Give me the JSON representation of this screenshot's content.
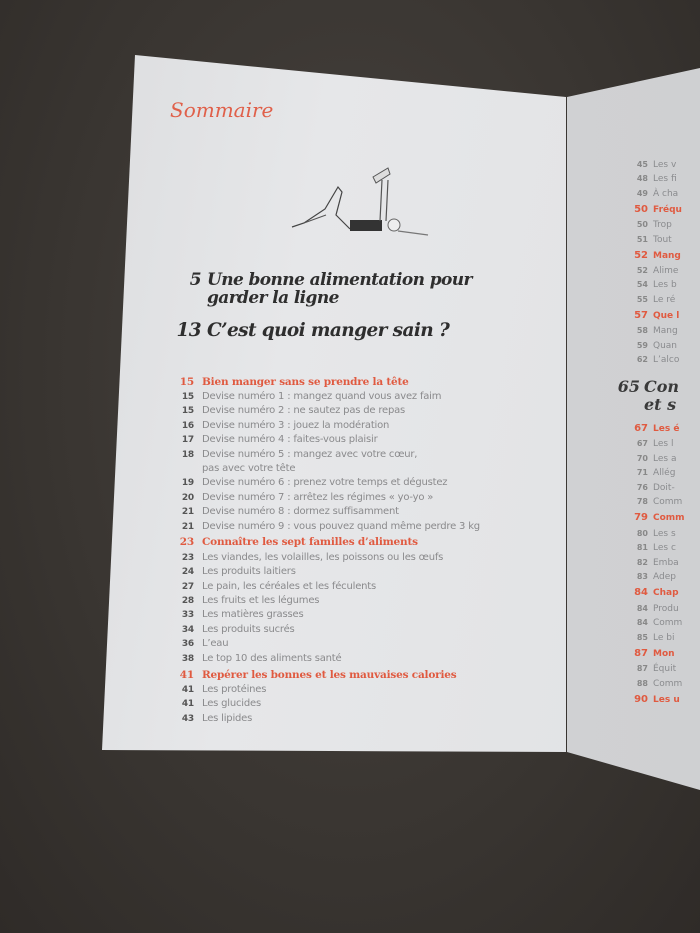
{
  "left_page": {
    "heading": "Sommaire",
    "chapters": [
      {
        "page": "5",
        "line1": "Une bonne alimentation pour",
        "line2": "garder la ligne"
      },
      {
        "page": "13",
        "line1": "C’est quoi manger sain ?"
      }
    ],
    "entries": [
      {
        "page": "15",
        "text": "Bien manger sans se prendre la tête",
        "section": true
      },
      {
        "page": "15",
        "text": "Devise numéro 1 : mangez quand vous avez faim"
      },
      {
        "page": "15",
        "text": "Devise numéro 2 : ne sautez pas de repas"
      },
      {
        "page": "16",
        "text": "Devise numéro 3 : jouez la modération"
      },
      {
        "page": "17",
        "text": "Devise numéro 4 : faites-vous plaisir"
      },
      {
        "page": "18",
        "text": "Devise numéro 5 : mangez avec votre cœur,"
      },
      {
        "page": "",
        "text": "pas avec votre tête"
      },
      {
        "page": "19",
        "text": "Devise numéro 6 : prenez votre temps et dégustez"
      },
      {
        "page": "20",
        "text": "Devise numéro 7 : arrêtez les régimes « yo-yo »"
      },
      {
        "page": "21",
        "text": "Devise numéro 8 : dormez suffisamment"
      },
      {
        "page": "21",
        "text": "Devise numéro 9 : vous pouvez quand même perdre 3 kg"
      },
      {
        "page": "23",
        "text": "Connaître les sept familles d’aliments",
        "section": true
      },
      {
        "page": "23",
        "text": "Les viandes, les volailles, les poissons ou les œufs"
      },
      {
        "page": "24",
        "text": "Les produits laitiers"
      },
      {
        "page": "27",
        "text": "Le pain, les céréales et les féculents"
      },
      {
        "page": "28",
        "text": "Les fruits et les légumes"
      },
      {
        "page": "33",
        "text": "Les matières grasses"
      },
      {
        "page": "34",
        "text": "Les produits sucrés"
      },
      {
        "page": "36",
        "text": "L’eau"
      },
      {
        "page": "38",
        "text": "Le top 10 des aliments santé"
      },
      {
        "page": "41",
        "text": "Repérer les bonnes et les mauvaises calories",
        "section": true
      },
      {
        "page": "41",
        "text": "Les protéines"
      },
      {
        "page": "41",
        "text": "Les glucides"
      },
      {
        "page": "43",
        "text": "Les lipides"
      }
    ]
  },
  "right_page": {
    "entries_top": [
      {
        "page": "45",
        "text": "Les v"
      },
      {
        "page": "48",
        "text": "Les fi"
      },
      {
        "page": "49",
        "text": "À cha"
      },
      {
        "page": "50",
        "text": "Fréqu",
        "section": true
      },
      {
        "page": "50",
        "text": "Trop"
      },
      {
        "page": "51",
        "text": "Tout"
      },
      {
        "page": "52",
        "text": "Mang",
        "section": true
      },
      {
        "page": "52",
        "text": "Alime"
      },
      {
        "page": "54",
        "text": "Les b"
      },
      {
        "page": "55",
        "text": "Le ré"
      },
      {
        "page": "57",
        "text": "Que l",
        "section": true
      },
      {
        "page": "58",
        "text": "Mang"
      },
      {
        "page": "59",
        "text": "Quan"
      },
      {
        "page": "62",
        "text": "L’alco"
      }
    ],
    "chapter": {
      "page": "65",
      "line1": "Con",
      "line2": "et s"
    },
    "entries_bottom": [
      {
        "page": "67",
        "text": "Les é",
        "section": true
      },
      {
        "page": "67",
        "text": "Les l"
      },
      {
        "page": "70",
        "text": "Les a"
      },
      {
        "page": "71",
        "text": "Allég"
      },
      {
        "page": "76",
        "text": "Doit-"
      },
      {
        "page": "78",
        "text": "Comm"
      },
      {
        "page": "79",
        "text": "Comm",
        "section": true
      },
      {
        "page": "80",
        "text": "Les s"
      },
      {
        "page": "81",
        "text": "Les c"
      },
      {
        "page": "82",
        "text": "Emba"
      },
      {
        "page": "83",
        "text": "Adep"
      },
      {
        "page": "84",
        "text": "Chap",
        "section": true
      },
      {
        "page": "84",
        "text": "Produ"
      },
      {
        "page": "84",
        "text": "Comm"
      },
      {
        "page": "85",
        "text": "Le bi"
      },
      {
        "page": "87",
        "text": "Mon",
        "section": true
      },
      {
        "page": "87",
        "text": "Équit"
      },
      {
        "page": "88",
        "text": "Comm"
      },
      {
        "page": "90",
        "text": "Les u",
        "section": true
      }
    ]
  },
  "colors": {
    "accent": "#e05a40",
    "text": "#8a8a8c",
    "background": "#3b3734"
  }
}
